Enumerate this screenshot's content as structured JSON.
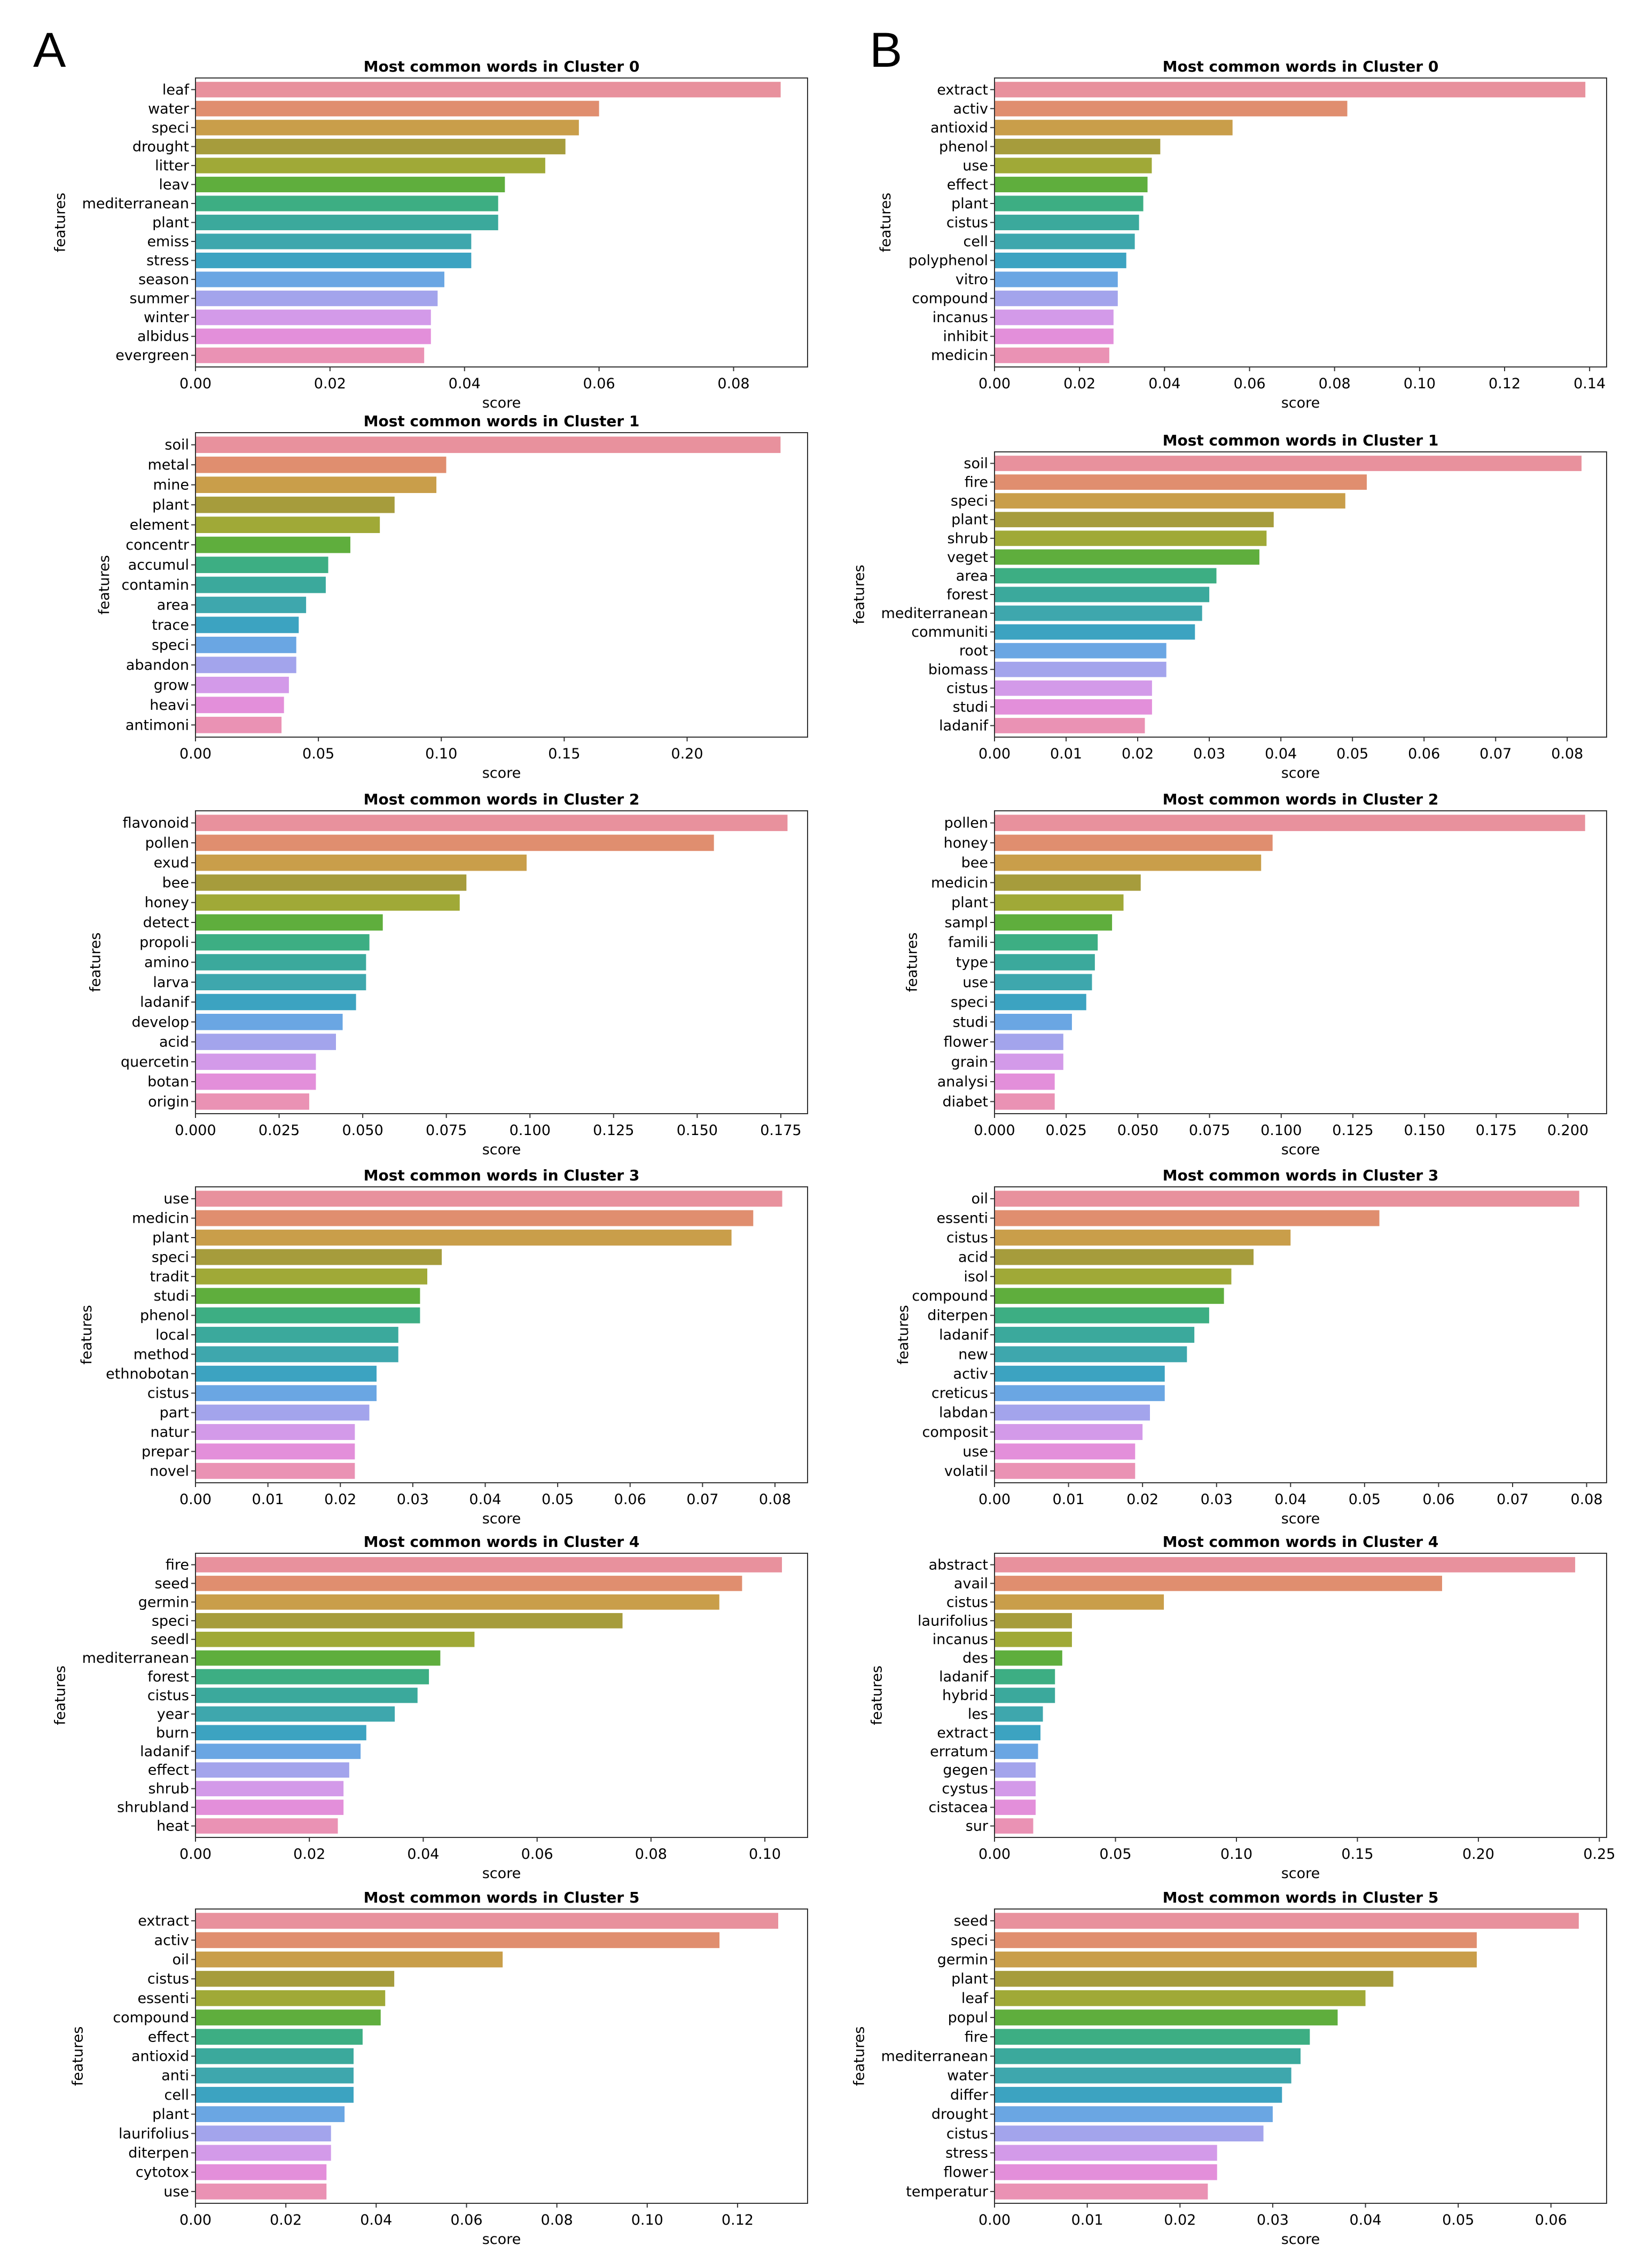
{
  "panels": [
    {
      "letter": "A"
    },
    {
      "letter": "B"
    }
  ],
  "palette": [
    "#e8919d",
    "#e08e6f",
    "#c99e4a",
    "#a69c3c",
    "#a0a937",
    "#5fae3d",
    "#3dae83",
    "#3ba99c",
    "#3ea7ad",
    "#3ca3c1",
    "#6aa6e3",
    "#a3a4ec",
    "#d39ae9",
    "#e38fda",
    "#ea92b4"
  ],
  "chart_data": [
    {
      "panel": "A",
      "type": "bar",
      "orientation": "horizontal",
      "title": "Most common words in Cluster 0",
      "xlabel": "score",
      "ylabel": "features",
      "xlim": [
        0,
        0.091
      ],
      "xticks": [
        "0.00",
        "0.02",
        "0.04",
        "0.06",
        "0.08"
      ],
      "categories": [
        "leaf",
        "water",
        "speci",
        "drought",
        "litter",
        "leav",
        "mediterranean",
        "plant",
        "emiss",
        "stress",
        "season",
        "summer",
        "winter",
        "albidus",
        "evergreen"
      ],
      "values": [
        0.087,
        0.06,
        0.057,
        0.055,
        0.052,
        0.046,
        0.045,
        0.045,
        0.041,
        0.041,
        0.037,
        0.036,
        0.035,
        0.035,
        0.034
      ]
    },
    {
      "panel": "B",
      "type": "bar",
      "orientation": "horizontal",
      "title": "Most common words in Cluster 0",
      "xlabel": "score",
      "ylabel": "features",
      "xlim": [
        0,
        0.144
      ],
      "xticks": [
        "0.00",
        "0.02",
        "0.04",
        "0.06",
        "0.08",
        "0.10",
        "0.12",
        "0.14"
      ],
      "categories": [
        "extract",
        "activ",
        "antioxid",
        "phenol",
        "use",
        "effect",
        "plant",
        "cistus",
        "cell",
        "polyphenol",
        "vitro",
        "compound",
        "incanus",
        "inhibit",
        "medicin"
      ],
      "values": [
        0.139,
        0.083,
        0.056,
        0.039,
        0.037,
        0.036,
        0.035,
        0.034,
        0.033,
        0.031,
        0.029,
        0.029,
        0.028,
        0.028,
        0.027
      ]
    },
    {
      "panel": "A",
      "type": "bar",
      "orientation": "horizontal",
      "title": "Most common words in Cluster 1",
      "xlabel": "score",
      "ylabel": "features",
      "xlim": [
        0,
        0.249
      ],
      "xticks": [
        "0.00",
        "0.05",
        "0.10",
        "0.15",
        "0.20"
      ],
      "categories": [
        "soil",
        "metal",
        "mine",
        "plant",
        "element",
        "concentr",
        "accumul",
        "contamin",
        "area",
        "trace",
        "speci",
        "abandon",
        "grow",
        "heavi",
        "antimoni"
      ],
      "values": [
        0.238,
        0.102,
        0.098,
        0.081,
        0.075,
        0.063,
        0.054,
        0.053,
        0.045,
        0.042,
        0.041,
        0.041,
        0.038,
        0.036,
        0.035
      ]
    },
    {
      "panel": "B",
      "type": "bar",
      "orientation": "horizontal",
      "title": "Most common words in Cluster 1",
      "xlabel": "score",
      "ylabel": "features",
      "xlim": [
        0,
        0.0855
      ],
      "xticks": [
        "0.00",
        "0.01",
        "0.02",
        "0.03",
        "0.04",
        "0.05",
        "0.06",
        "0.07",
        "0.08"
      ],
      "categories": [
        "soil",
        "fire",
        "speci",
        "plant",
        "shrub",
        "veget",
        "area",
        "forest",
        "mediterranean",
        "communiti",
        "root",
        "biomass",
        "cistus",
        "studi",
        "ladanif"
      ],
      "values": [
        0.082,
        0.052,
        0.049,
        0.039,
        0.038,
        0.037,
        0.031,
        0.03,
        0.029,
        0.028,
        0.024,
        0.024,
        0.022,
        0.022,
        0.021
      ]
    },
    {
      "panel": "A",
      "type": "bar",
      "orientation": "horizontal",
      "title": "Most common words in Cluster 2",
      "xlabel": "score",
      "ylabel": "features",
      "xlim": [
        0,
        0.183
      ],
      "xticks": [
        "0.000",
        "0.025",
        "0.050",
        "0.075",
        "0.100",
        "0.125",
        "0.150",
        "0.175"
      ],
      "categories": [
        "flavonoid",
        "pollen",
        "exud",
        "bee",
        "honey",
        "detect",
        "propoli",
        "amino",
        "larva",
        "ladanif",
        "develop",
        "acid",
        "quercetin",
        "botan",
        "origin"
      ],
      "values": [
        0.177,
        0.155,
        0.099,
        0.081,
        0.079,
        0.056,
        0.052,
        0.051,
        0.051,
        0.048,
        0.044,
        0.042,
        0.036,
        0.036,
        0.034
      ]
    },
    {
      "panel": "B",
      "type": "bar",
      "orientation": "horizontal",
      "title": "Most common words in Cluster 2",
      "xlabel": "score",
      "ylabel": "features",
      "xlim": [
        0,
        0.2135
      ],
      "xticks": [
        "0.000",
        "0.025",
        "0.050",
        "0.075",
        "0.100",
        "0.125",
        "0.150",
        "0.175",
        "0.200"
      ],
      "categories": [
        "pollen",
        "honey",
        "bee",
        "medicin",
        "plant",
        "sampl",
        "famili",
        "type",
        "use",
        "speci",
        "studi",
        "flower",
        "grain",
        "analysi",
        "diabet"
      ],
      "values": [
        0.206,
        0.097,
        0.093,
        0.051,
        0.045,
        0.041,
        0.036,
        0.035,
        0.034,
        0.032,
        0.027,
        0.024,
        0.024,
        0.021,
        0.021
      ]
    },
    {
      "panel": "A",
      "type": "bar",
      "orientation": "horizontal",
      "title": "Most common words in Cluster 3",
      "xlabel": "score",
      "ylabel": "features",
      "xlim": [
        0,
        0.0845
      ],
      "xticks": [
        "0.00",
        "0.01",
        "0.02",
        "0.03",
        "0.04",
        "0.05",
        "0.06",
        "0.07",
        "0.08"
      ],
      "categories": [
        "use",
        "medicin",
        "plant",
        "speci",
        "tradit",
        "studi",
        "phenol",
        "local",
        "method",
        "ethnobotan",
        "cistus",
        "part",
        "natur",
        "prepar",
        "novel"
      ],
      "values": [
        0.081,
        0.077,
        0.074,
        0.034,
        0.032,
        0.031,
        0.031,
        0.028,
        0.028,
        0.025,
        0.025,
        0.024,
        0.022,
        0.022,
        0.022
      ]
    },
    {
      "panel": "B",
      "type": "bar",
      "orientation": "horizontal",
      "title": "Most common words in Cluster 3",
      "xlabel": "score",
      "ylabel": "features",
      "xlim": [
        0,
        0.0827
      ],
      "xticks": [
        "0.00",
        "0.01",
        "0.02",
        "0.03",
        "0.04",
        "0.05",
        "0.06",
        "0.07",
        "0.08"
      ],
      "categories": [
        "oil",
        "essenti",
        "cistus",
        "acid",
        "isol",
        "compound",
        "diterpen",
        "ladanif",
        "new",
        "activ",
        "creticus",
        "labdan",
        "composit",
        "use",
        "volatil"
      ],
      "values": [
        0.079,
        0.052,
        0.04,
        0.035,
        0.032,
        0.031,
        0.029,
        0.027,
        0.026,
        0.023,
        0.023,
        0.021,
        0.02,
        0.019,
        0.019
      ]
    },
    {
      "panel": "A",
      "type": "bar",
      "orientation": "horizontal",
      "title": "Most common words in Cluster 4",
      "xlabel": "score",
      "ylabel": "features",
      "xlim": [
        0,
        0.1075
      ],
      "xticks": [
        "0.00",
        "0.02",
        "0.04",
        "0.06",
        "0.08",
        "0.10"
      ],
      "categories": [
        "fire",
        "seed",
        "germin",
        "speci",
        "seedl",
        "mediterranean",
        "forest",
        "cistus",
        "year",
        "burn",
        "ladanif",
        "effect",
        "shrub",
        "shrubland",
        "heat"
      ],
      "values": [
        0.103,
        0.096,
        0.092,
        0.075,
        0.049,
        0.043,
        0.041,
        0.039,
        0.035,
        0.03,
        0.029,
        0.027,
        0.026,
        0.026,
        0.025
      ]
    },
    {
      "panel": "B",
      "type": "bar",
      "orientation": "horizontal",
      "title": "Most common words in Cluster 4",
      "xlabel": "score",
      "ylabel": "features",
      "xlim": [
        0,
        0.253
      ],
      "xticks": [
        "0.00",
        "0.05",
        "0.10",
        "0.15",
        "0.20",
        "0.25"
      ],
      "categories": [
        "abstract",
        "avail",
        "cistus",
        "laurifolius",
        "incanus",
        "des",
        "ladanif",
        "hybrid",
        "les",
        "extract",
        "erratum",
        "gegen",
        "cystus",
        "cistacea",
        "sur"
      ],
      "values": [
        0.24,
        0.185,
        0.07,
        0.032,
        0.032,
        0.028,
        0.025,
        0.025,
        0.02,
        0.019,
        0.018,
        0.017,
        0.017,
        0.017,
        0.016
      ]
    },
    {
      "panel": "A",
      "type": "bar",
      "orientation": "horizontal",
      "title": "Most common words in Cluster 5",
      "xlabel": "score",
      "ylabel": "features",
      "xlim": [
        0,
        0.1355
      ],
      "xticks": [
        "0.00",
        "0.02",
        "0.04",
        "0.06",
        "0.08",
        "0.10",
        "0.12"
      ],
      "categories": [
        "extract",
        "activ",
        "oil",
        "cistus",
        "essenti",
        "compound",
        "effect",
        "antioxid",
        "anti",
        "cell",
        "plant",
        "laurifolius",
        "diterpen",
        "cytotox",
        "use"
      ],
      "values": [
        0.129,
        0.116,
        0.068,
        0.044,
        0.042,
        0.041,
        0.037,
        0.035,
        0.035,
        0.035,
        0.033,
        0.03,
        0.03,
        0.029,
        0.029
      ]
    },
    {
      "panel": "B",
      "type": "bar",
      "orientation": "horizontal",
      "title": "Most common words in Cluster 5",
      "xlabel": "score",
      "ylabel": "features",
      "xlim": [
        0,
        0.066
      ],
      "xticks": [
        "0.00",
        "0.01",
        "0.02",
        "0.03",
        "0.04",
        "0.05",
        "0.06"
      ],
      "categories": [
        "seed",
        "speci",
        "germin",
        "plant",
        "leaf",
        "popul",
        "fire",
        "mediterranean",
        "water",
        "differ",
        "drought",
        "cistus",
        "stress",
        "flower",
        "temperatur"
      ],
      "values": [
        0.063,
        0.052,
        0.052,
        0.043,
        0.04,
        0.037,
        0.034,
        0.033,
        0.032,
        0.031,
        0.03,
        0.029,
        0.024,
        0.024,
        0.023
      ]
    }
  ]
}
